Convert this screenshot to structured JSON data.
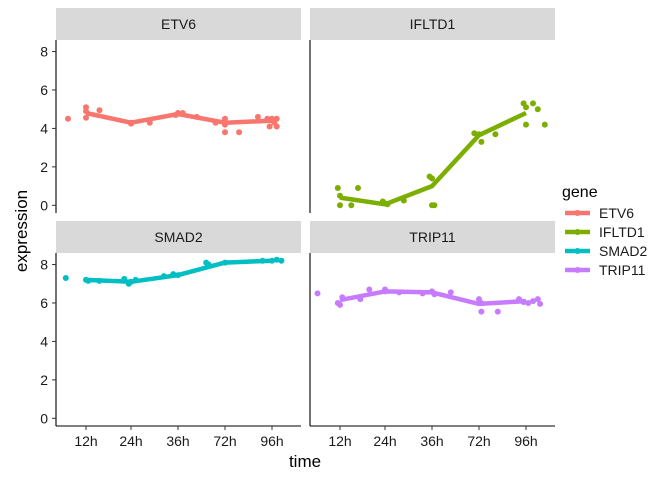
{
  "chart_data": {
    "type": "scatter",
    "xlabel": "time",
    "ylabel": "expression",
    "categories": [
      "12h",
      "24h",
      "36h",
      "72h",
      "96h"
    ],
    "y_ticks": [
      "0",
      "2",
      "4",
      "6",
      "8"
    ],
    "ylim": [
      -0.4,
      8.6
    ],
    "grid": false,
    "legend": {
      "title": "gene",
      "placement": "right",
      "items": [
        {
          "name": "ETV6",
          "color": "#F8766D"
        },
        {
          "name": "IFLTD1",
          "color": "#7CAE00"
        },
        {
          "name": "SMAD2",
          "color": "#00BFC4"
        },
        {
          "name": "TRIP11",
          "color": "#C77CFF"
        }
      ]
    },
    "panels": [
      {
        "name": "ETV6",
        "color": "#F8766D",
        "trend": [
          4.8,
          4.3,
          4.75,
          4.3,
          4.4
        ],
        "points": [
          [
            0.6,
            4.5
          ],
          [
            1.0,
            5.1
          ],
          [
            1.0,
            4.9
          ],
          [
            1.0,
            4.55
          ],
          [
            1.3,
            4.95
          ],
          [
            2.0,
            4.3
          ],
          [
            2.0,
            4.25
          ],
          [
            2.4,
            4.3
          ],
          [
            3.0,
            4.8
          ],
          [
            2.95,
            4.7
          ],
          [
            3.1,
            4.8
          ],
          [
            3.4,
            4.6
          ],
          [
            3.8,
            4.3
          ],
          [
            4.0,
            4.5
          ],
          [
            4.0,
            4.2
          ],
          [
            4.0,
            3.8
          ],
          [
            4.3,
            3.8
          ],
          [
            4.7,
            4.6
          ],
          [
            4.9,
            4.5
          ],
          [
            4.95,
            4.1
          ],
          [
            5.0,
            4.5
          ],
          [
            5.05,
            4.3
          ],
          [
            5.1,
            4.1
          ],
          [
            5.1,
            4.5
          ]
        ]
      },
      {
        "name": "IFLTD1",
        "color": "#7CAE00",
        "trend": [
          0.4,
          0.05,
          1.0,
          3.65,
          4.8
        ],
        "points": [
          [
            0.95,
            0.9
          ],
          [
            1.0,
            0.5
          ],
          [
            1.0,
            0.0
          ],
          [
            1.25,
            0.0
          ],
          [
            1.4,
            0.9
          ],
          [
            1.95,
            0.2
          ],
          [
            2.0,
            0.1
          ],
          [
            2.05,
            0.05
          ],
          [
            2.4,
            0.25
          ],
          [
            2.95,
            1.5
          ],
          [
            3.0,
            1.4
          ],
          [
            3.0,
            0.0
          ],
          [
            3.05,
            0.0
          ],
          [
            3.9,
            3.75
          ],
          [
            4.0,
            3.7
          ],
          [
            4.05,
            3.3
          ],
          [
            4.35,
            3.7
          ],
          [
            4.95,
            5.3
          ],
          [
            5.0,
            4.2
          ],
          [
            5.0,
            5.1
          ],
          [
            5.15,
            5.3
          ],
          [
            5.25,
            5.0
          ],
          [
            5.4,
            4.2
          ]
        ]
      },
      {
        "name": "SMAD2",
        "color": "#00BFC4",
        "trend": [
          7.2,
          7.1,
          7.45,
          8.1,
          8.2
        ],
        "points": [
          [
            0.55,
            7.3
          ],
          [
            1.0,
            7.2
          ],
          [
            1.05,
            7.15
          ],
          [
            1.3,
            7.15
          ],
          [
            1.85,
            7.25
          ],
          [
            1.95,
            7.0
          ],
          [
            2.0,
            7.1
          ],
          [
            2.1,
            7.2
          ],
          [
            2.7,
            7.4
          ],
          [
            3.0,
            7.45
          ],
          [
            2.9,
            7.5
          ],
          [
            3.6,
            8.1
          ],
          [
            3.65,
            8.0
          ],
          [
            4.0,
            8.1
          ],
          [
            4.8,
            8.2
          ],
          [
            5.0,
            8.2
          ],
          [
            5.1,
            8.25
          ],
          [
            5.2,
            8.2
          ]
        ]
      },
      {
        "name": "TRIP11",
        "color": "#C77CFF",
        "trend": [
          6.15,
          6.6,
          6.55,
          5.95,
          6.1
        ],
        "points": [
          [
            0.5,
            6.5
          ],
          [
            0.95,
            6.0
          ],
          [
            1.0,
            5.9
          ],
          [
            1.05,
            6.3
          ],
          [
            1.45,
            6.2
          ],
          [
            1.65,
            6.7
          ],
          [
            2.0,
            6.7
          ],
          [
            2.0,
            6.6
          ],
          [
            2.3,
            6.55
          ],
          [
            2.8,
            6.5
          ],
          [
            3.0,
            6.6
          ],
          [
            3.05,
            6.45
          ],
          [
            3.4,
            6.55
          ],
          [
            4.0,
            6.2
          ],
          [
            4.05,
            5.55
          ],
          [
            4.05,
            6.0
          ],
          [
            4.4,
            5.55
          ],
          [
            4.85,
            6.2
          ],
          [
            4.95,
            6.05
          ],
          [
            5.05,
            6.0
          ],
          [
            5.15,
            6.1
          ],
          [
            5.25,
            6.2
          ],
          [
            5.3,
            5.95
          ]
        ]
      }
    ]
  }
}
